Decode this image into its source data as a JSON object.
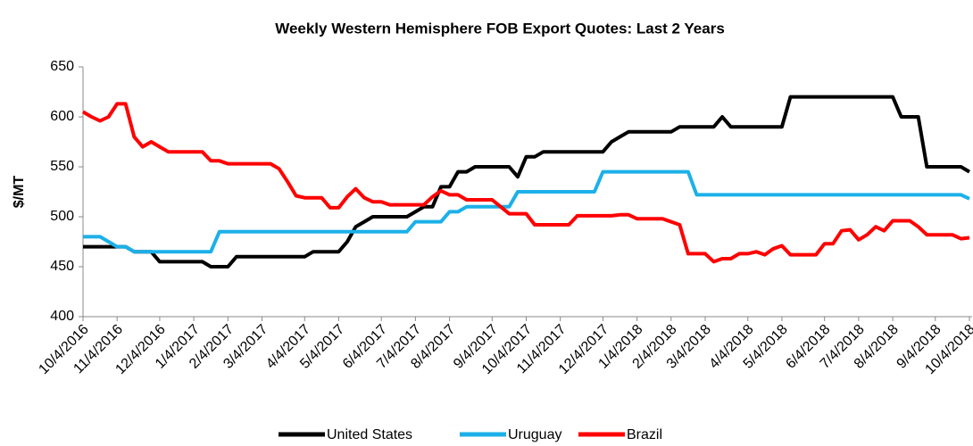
{
  "chart_data": {
    "type": "line",
    "title": "Weekly Western Hemisphere FOB Export Quotes: Last 2 Years",
    "ylabel": "$/MT",
    "categories": [
      "10/4/2016",
      null,
      null,
      null,
      "11/4/2016",
      null,
      null,
      null,
      null,
      "12/4/2016",
      null,
      null,
      null,
      "1/4/2017",
      null,
      null,
      null,
      "2/4/2017",
      null,
      null,
      null,
      "3/4/2017",
      null,
      null,
      null,
      null,
      "4/4/2017",
      null,
      null,
      null,
      "5/4/2017",
      null,
      null,
      null,
      null,
      "6/4/2017",
      null,
      null,
      null,
      "7/4/2017",
      null,
      null,
      null,
      "8/4/2017",
      null,
      null,
      null,
      null,
      "9/4/2017",
      null,
      null,
      null,
      "10/4/2017",
      null,
      null,
      null,
      "11/4/2017",
      null,
      null,
      null,
      null,
      "12/4/2017",
      null,
      null,
      null,
      "1/4/2018",
      null,
      null,
      null,
      "2/4/2018",
      null,
      null,
      null,
      "3/4/2018",
      null,
      null,
      null,
      null,
      "4/4/2018",
      null,
      null,
      null,
      "5/4/2018",
      null,
      null,
      null,
      null,
      "6/4/2018",
      null,
      null,
      null,
      "7/4/2018",
      null,
      null,
      null,
      "8/4/2018",
      null,
      null,
      null,
      null,
      "9/4/2018",
      null,
      null,
      null,
      "10/4/2018"
    ],
    "series": [
      {
        "name": "United States",
        "color": "#000000",
        "values": [
          470,
          470,
          470,
          470,
          470,
          470,
          465,
          465,
          465,
          455,
          455,
          455,
          455,
          455,
          455,
          450,
          450,
          450,
          460,
          460,
          460,
          460,
          460,
          460,
          460,
          460,
          460,
          465,
          465,
          465,
          465,
          475,
          490,
          495,
          500,
          500,
          500,
          500,
          500,
          505,
          510,
          510,
          530,
          530,
          545,
          545,
          550,
          550,
          550,
          550,
          550,
          540,
          560,
          560,
          565,
          565,
          565,
          565,
          565,
          565,
          565,
          565,
          575,
          580,
          585,
          585,
          585,
          585,
          585,
          585,
          590,
          590,
          590,
          590,
          590,
          600,
          590,
          590,
          590,
          590,
          590,
          590,
          590,
          620,
          620,
          620,
          620,
          620,
          620,
          620,
          620,
          620,
          620,
          620,
          620,
          620,
          600,
          600,
          600,
          550,
          550,
          550,
          550,
          550,
          545
        ]
      },
      {
        "name": "Uruguay",
        "color": "#1cb0e8",
        "values": [
          480,
          480,
          480,
          475,
          470,
          470,
          465,
          465,
          465,
          465,
          465,
          465,
          465,
          465,
          465,
          465,
          485,
          485,
          485,
          485,
          485,
          485,
          485,
          485,
          485,
          485,
          485,
          485,
          485,
          485,
          485,
          485,
          485,
          485,
          485,
          485,
          485,
          485,
          485,
          495,
          495,
          495,
          495,
          505,
          505,
          510,
          510,
          510,
          510,
          510,
          510,
          525,
          525,
          525,
          525,
          525,
          525,
          525,
          525,
          525,
          525,
          545,
          545,
          545,
          545,
          545,
          545,
          545,
          545,
          545,
          545,
          545,
          522,
          522,
          522,
          522,
          522,
          522,
          522,
          522,
          522,
          522,
          522,
          522,
          522,
          522,
          522,
          522,
          522,
          522,
          522,
          522,
          522,
          522,
          522,
          522,
          522,
          522,
          522,
          522,
          522,
          522,
          522,
          522,
          518
        ]
      },
      {
        "name": "Brazil",
        "color": "#ff0000",
        "values": [
          605,
          600,
          596,
          600,
          613,
          613,
          580,
          570,
          575,
          570,
          565,
          565,
          565,
          565,
          565,
          556,
          556,
          553,
          553,
          553,
          553,
          553,
          553,
          548,
          535,
          521,
          519,
          519,
          519,
          509,
          509,
          520,
          528,
          519,
          515,
          515,
          512,
          512,
          512,
          512,
          512,
          520,
          526,
          522,
          522,
          517,
          517,
          517,
          517,
          510,
          503,
          503,
          503,
          492,
          492,
          492,
          492,
          492,
          501,
          501,
          501,
          501,
          501,
          502,
          502,
          498,
          498,
          498,
          498,
          495,
          492,
          463,
          463,
          463,
          455,
          458,
          458,
          463,
          463,
          465,
          462,
          468,
          471,
          462,
          462,
          462,
          462,
          473,
          473,
          486,
          487,
          477,
          482,
          490,
          486,
          496,
          496,
          496,
          490,
          482,
          482,
          482,
          482,
          478,
          479
        ]
      }
    ],
    "ylim": [
      400,
      650
    ],
    "yticks": [
      400,
      450,
      500,
      550,
      600,
      650
    ],
    "grid": false,
    "legend": "bottom"
  }
}
